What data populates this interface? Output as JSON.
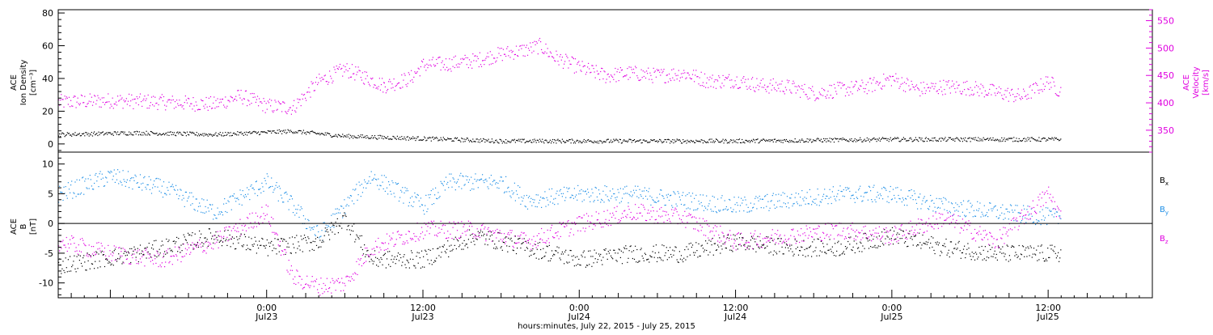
{
  "colors": {
    "black": "#000000",
    "magenta": "#e000e0",
    "blue": "#1f8fe6"
  },
  "time_axis": {
    "start": "2015-07-22T08:00",
    "end": "2015-07-25T20:00",
    "major_ticks": [
      {
        "t": "2015-07-23T00:00",
        "time": "0:00",
        "date": "Jul23"
      },
      {
        "t": "2015-07-23T12:00",
        "time": "12:00",
        "date": "Jul23"
      },
      {
        "t": "2015-07-24T00:00",
        "time": "0:00",
        "date": "Jul24"
      },
      {
        "t": "2015-07-24T12:00",
        "time": "12:00",
        "date": "Jul24"
      },
      {
        "t": "2015-07-25T00:00",
        "time": "0:00",
        "date": "Jul25"
      },
      {
        "t": "2015-07-25T12:00",
        "time": "12:00",
        "date": "Jul25"
      }
    ],
    "label": "hours:minutes, July 22, 2015 - July 25, 2015"
  },
  "chart_data": [
    {
      "type": "scatter",
      "panel": "top",
      "left_axis": {
        "label_lines": [
          "ACE",
          "Ion Density",
          "[cm⁻³]"
        ],
        "ylim": [
          -5,
          82
        ],
        "ticks": [
          0,
          20,
          40,
          60,
          80
        ]
      },
      "right_axis": {
        "label_lines": [
          "ACE",
          "Velocity",
          "[km/s]"
        ],
        "ylim": [
          310,
          570
        ],
        "ticks": [
          350,
          400,
          450,
          500,
          550
        ]
      },
      "series": [
        {
          "name": "ACE Ion Density",
          "axis": "left",
          "color": "black",
          "points": [
            [
              "2015-07-22T08:00",
              6
            ],
            [
              "2015-07-22T14:00",
              7
            ],
            [
              "2015-07-22T20:00",
              6
            ],
            [
              "2015-07-23T02:00",
              8
            ],
            [
              "2015-07-23T06:00",
              5
            ],
            [
              "2015-07-23T10:00",
              4
            ],
            [
              "2015-07-23T14:00",
              3
            ],
            [
              "2015-07-23T18:00",
              2
            ],
            [
              "2015-07-24T00:00",
              2
            ],
            [
              "2015-07-24T12:00",
              2
            ],
            [
              "2015-07-25T00:00",
              3
            ],
            [
              "2015-07-25T13:00",
              3
            ]
          ]
        },
        {
          "name": "ACE Velocity",
          "axis": "right",
          "color": "magenta",
          "points": [
            [
              "2015-07-22T08:00",
              402
            ],
            [
              "2015-07-22T12:00",
              405
            ],
            [
              "2015-07-22T16:00",
              402
            ],
            [
              "2015-07-22T20:00",
              398
            ],
            [
              "2015-07-22T22:00",
              413
            ],
            [
              "2015-07-23T00:00",
              395
            ],
            [
              "2015-07-23T02:00",
              392
            ],
            [
              "2015-07-23T04:00",
              440
            ],
            [
              "2015-07-23T06:00",
              462
            ],
            [
              "2015-07-23T07:30",
              448
            ],
            [
              "2015-07-23T09:00",
              432
            ],
            [
              "2015-07-23T11:00",
              445
            ],
            [
              "2015-07-23T12:00",
              470
            ],
            [
              "2015-07-23T14:00",
              472
            ],
            [
              "2015-07-23T16:00",
              478
            ],
            [
              "2015-07-23T18:00",
              490
            ],
            [
              "2015-07-23T20:00",
              498
            ],
            [
              "2015-07-23T21:00",
              505
            ],
            [
              "2015-07-23T22:00",
              485
            ],
            [
              "2015-07-24T00:00",
              465
            ],
            [
              "2015-07-24T02:00",
              450
            ],
            [
              "2015-07-24T04:00",
              455
            ],
            [
              "2015-07-24T06:00",
              450
            ],
            [
              "2015-07-24T08:00",
              455
            ],
            [
              "2015-07-24T10:00",
              440
            ],
            [
              "2015-07-24T12:00",
              442
            ],
            [
              "2015-07-24T14:00",
              432
            ],
            [
              "2015-07-24T16:00",
              430
            ],
            [
              "2015-07-24T18:00",
              418
            ],
            [
              "2015-07-24T20:00",
              425
            ],
            [
              "2015-07-24T22:00",
              430
            ],
            [
              "2015-07-25T00:00",
              445
            ],
            [
              "2015-07-25T02:00",
              425
            ],
            [
              "2015-07-25T04:00",
              430
            ],
            [
              "2015-07-25T06:00",
              428
            ],
            [
              "2015-07-25T08:00",
              420
            ],
            [
              "2015-07-25T10:00",
              412
            ],
            [
              "2015-07-25T12:00",
              440
            ],
            [
              "2015-07-25T13:00",
              420
            ]
          ]
        }
      ]
    },
    {
      "type": "scatter",
      "panel": "bottom",
      "left_axis": {
        "label_lines": [
          "ACE",
          "B",
          "[nT]"
        ],
        "ylim": [
          -12.5,
          12
        ],
        "ticks": [
          -10,
          -5,
          0,
          5,
          10
        ]
      },
      "legend": [
        {
          "label": "B",
          "sub": "x",
          "color": "black"
        },
        {
          "label": "B",
          "sub": "y",
          "color": "blue"
        },
        {
          "label": "B",
          "sub": "z",
          "color": "magenta"
        }
      ],
      "series": [
        {
          "name": "Bx",
          "color": "black",
          "points": [
            [
              "2015-07-22T08:00",
              -7
            ],
            [
              "2015-07-22T14:00",
              -5
            ],
            [
              "2015-07-22T20:00",
              -2
            ],
            [
              "2015-07-23T00:00",
              -4
            ],
            [
              "2015-07-23T04:00",
              -3
            ],
            [
              "2015-07-23T06:00",
              1
            ],
            [
              "2015-07-23T08:00",
              -6
            ],
            [
              "2015-07-23T12:00",
              -6
            ],
            [
              "2015-07-23T16:00",
              -2
            ],
            [
              "2015-07-23T20:00",
              -4
            ],
            [
              "2015-07-24T00:00",
              -6
            ],
            [
              "2015-07-24T04:00",
              -5
            ],
            [
              "2015-07-24T08:00",
              -5
            ],
            [
              "2015-07-24T12:00",
              -3
            ],
            [
              "2015-07-24T16:00",
              -4
            ],
            [
              "2015-07-24T20:00",
              -4
            ],
            [
              "2015-07-25T00:00",
              -2
            ],
            [
              "2015-07-25T04:00",
              -4
            ],
            [
              "2015-07-25T08:00",
              -5
            ],
            [
              "2015-07-25T13:00",
              -5
            ]
          ]
        },
        {
          "name": "By",
          "color": "blue",
          "points": [
            [
              "2015-07-22T08:00",
              5
            ],
            [
              "2015-07-22T12:00",
              8
            ],
            [
              "2015-07-22T16:00",
              6
            ],
            [
              "2015-07-22T20:00",
              2
            ],
            [
              "2015-07-23T00:00",
              7
            ],
            [
              "2015-07-23T02:00",
              3
            ],
            [
              "2015-07-23T04:00",
              -2
            ],
            [
              "2015-07-23T08:00",
              8
            ],
            [
              "2015-07-23T12:00",
              3
            ],
            [
              "2015-07-23T14:00",
              7
            ],
            [
              "2015-07-23T18:00",
              7
            ],
            [
              "2015-07-23T20:00",
              4
            ],
            [
              "2015-07-24T00:00",
              5
            ],
            [
              "2015-07-24T04:00",
              5
            ],
            [
              "2015-07-24T08:00",
              4
            ],
            [
              "2015-07-24T12:00",
              3
            ],
            [
              "2015-07-24T16:00",
              4
            ],
            [
              "2015-07-24T20:00",
              5
            ],
            [
              "2015-07-25T00:00",
              5
            ],
            [
              "2015-07-25T04:00",
              3
            ],
            [
              "2015-07-25T08:00",
              2
            ],
            [
              "2015-07-25T13:00",
              1
            ]
          ]
        },
        {
          "name": "Bz",
          "color": "magenta",
          "points": [
            [
              "2015-07-22T08:00",
              -3
            ],
            [
              "2015-07-22T12:00",
              -5
            ],
            [
              "2015-07-22T16:00",
              -6
            ],
            [
              "2015-07-22T20:00",
              -3
            ],
            [
              "2015-07-23T00:00",
              2
            ],
            [
              "2015-07-23T02:00",
              -9
            ],
            [
              "2015-07-23T04:00",
              -10.5
            ],
            [
              "2015-07-23T06:00",
              -10
            ],
            [
              "2015-07-23T08:00",
              -4
            ],
            [
              "2015-07-23T12:00",
              -1
            ],
            [
              "2015-07-23T16:00",
              -1
            ],
            [
              "2015-07-23T20:00",
              -3
            ],
            [
              "2015-07-24T00:00",
              0
            ],
            [
              "2015-07-24T04:00",
              2
            ],
            [
              "2015-07-24T08:00",
              1
            ],
            [
              "2015-07-24T12:00",
              -3
            ],
            [
              "2015-07-24T16:00",
              -2
            ],
            [
              "2015-07-24T20:00",
              -1
            ],
            [
              "2015-07-25T00:00",
              -2
            ],
            [
              "2015-07-25T04:00",
              1
            ],
            [
              "2015-07-25T08:00",
              -3
            ],
            [
              "2015-07-25T12:00",
              5
            ],
            [
              "2015-07-25T13:00",
              1
            ]
          ]
        }
      ]
    }
  ]
}
